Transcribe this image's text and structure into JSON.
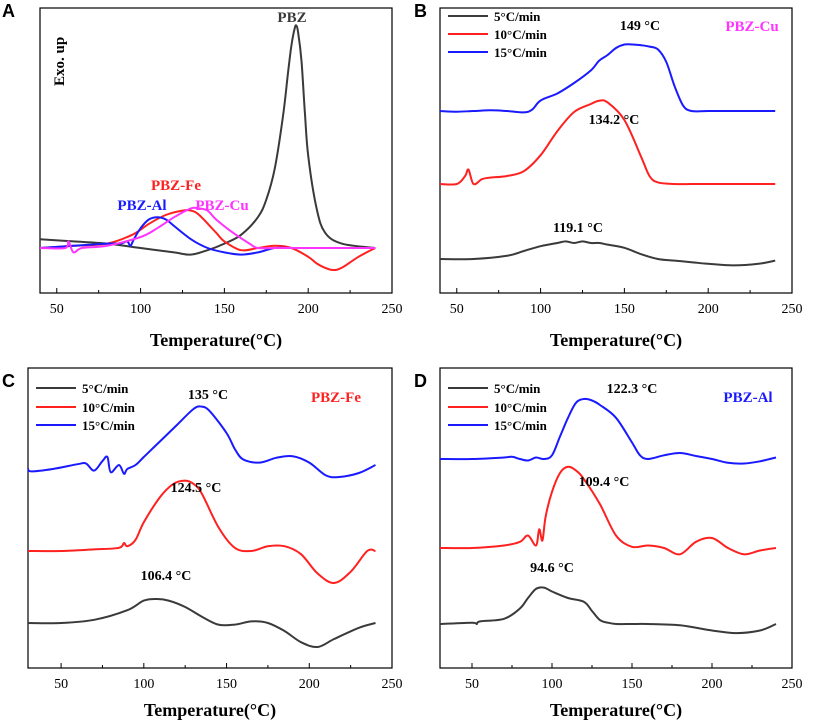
{
  "colors": {
    "black": "#3a3a3a",
    "red": "#ff2020",
    "blue": "#1a1aff",
    "magenta": "#ff33ff"
  },
  "chart_data": [
    {
      "id": "A",
      "type": "line",
      "panel_letter": "A",
      "xlabel": "Temperature(°C)",
      "ylabel": "Exo. up",
      "xlim": [
        40,
        250
      ],
      "xticks": [
        50,
        100,
        150,
        200,
        250
      ],
      "series": [
        {
          "name": "PBZ",
          "color": "#3a3a3a",
          "x": [
            40,
            60,
            80,
            100,
            120,
            130,
            140,
            150,
            160,
            170,
            175,
            180,
            185,
            188,
            190,
            192,
            193,
            194,
            196,
            198,
            200,
            205,
            210,
            220,
            240
          ],
          "y": [
            0.04,
            0.03,
            0.02,
            0.0,
            -0.02,
            -0.03,
            -0.01,
            0.02,
            0.06,
            0.14,
            0.22,
            0.36,
            0.6,
            0.8,
            0.92,
            1.0,
            1.01,
            0.98,
            0.85,
            0.62,
            0.42,
            0.18,
            0.07,
            0.02,
            0.0
          ]
        },
        {
          "name": "PBZ-Fe",
          "color": "#ff2020",
          "x": [
            40,
            60,
            80,
            95,
            105,
            115,
            125,
            130,
            135,
            145,
            150,
            160,
            170,
            180,
            190,
            200,
            205,
            210,
            215,
            220,
            230,
            240
          ],
          "y": [
            0.0,
            0.01,
            0.02,
            0.06,
            0.11,
            0.15,
            0.17,
            0.17,
            0.15,
            0.07,
            0.03,
            -0.01,
            0.0,
            0.01,
            0.0,
            -0.04,
            -0.07,
            -0.09,
            -0.1,
            -0.09,
            -0.04,
            0.0
          ]
        },
        {
          "name": "PBZ-Al",
          "color": "#1a1aff",
          "x": [
            40,
            60,
            80,
            88,
            92,
            94,
            96,
            100,
            105,
            110,
            115,
            120,
            130,
            140,
            150,
            160,
            170,
            180,
            190,
            200,
            220,
            240
          ],
          "y": [
            0.0,
            0.01,
            0.02,
            0.02,
            0.03,
            0.01,
            0.04,
            0.09,
            0.13,
            0.14,
            0.13,
            0.1,
            0.04,
            0.0,
            -0.02,
            -0.03,
            -0.02,
            0.0,
            0.0,
            0.0,
            0.0,
            0.0
          ]
        },
        {
          "name": "PBZ-Cu",
          "color": "#ff33ff",
          "x": [
            40,
            55,
            57,
            60,
            65,
            80,
            100,
            110,
            120,
            130,
            135,
            140,
            145,
            155,
            165,
            170,
            180,
            190,
            200,
            220,
            240
          ],
          "y": [
            0.0,
            0.0,
            0.03,
            -0.02,
            0.0,
            0.01,
            0.05,
            0.09,
            0.14,
            0.18,
            0.18,
            0.17,
            0.13,
            0.07,
            0.02,
            0.0,
            0.0,
            0.0,
            0.0,
            0.0,
            0.0
          ]
        }
      ],
      "annotations": [
        {
          "text": "PBZ",
          "color": "#3a3a3a"
        },
        {
          "text": "PBZ-Fe",
          "color": "#ff2020"
        },
        {
          "text": "PBZ-Al",
          "color": "#1a1aff"
        },
        {
          "text": "PBZ-Cu",
          "color": "#ff33ff"
        }
      ]
    },
    {
      "id": "B",
      "type": "line",
      "panel_letter": "B",
      "xlabel": "Temperature(°C)",
      "xlim": [
        40,
        250
      ],
      "xticks": [
        50,
        100,
        150,
        200,
        250
      ],
      "legend": [
        "5°C/min",
        "10°C/min",
        "15°C/min"
      ],
      "sample_label": "PBZ-Cu",
      "sample_color": "#ff33ff",
      "series": [
        {
          "name": "5°C/min",
          "color": "#3a3a3a",
          "x": [
            40,
            60,
            80,
            90,
            100,
            110,
            115,
            120,
            125,
            130,
            135,
            140,
            150,
            160,
            170,
            180,
            190,
            200,
            215,
            230,
            240
          ],
          "y": [
            0.0,
            0.0,
            0.02,
            0.05,
            0.08,
            0.1,
            0.11,
            0.1,
            0.11,
            0.1,
            0.1,
            0.09,
            0.07,
            0.03,
            0.0,
            -0.01,
            -0.02,
            -0.03,
            -0.04,
            -0.03,
            -0.01
          ]
        },
        {
          "name": "10°C/min",
          "color": "#ff2020",
          "x": [
            40,
            50,
            55,
            57,
            60,
            65,
            70,
            80,
            90,
            100,
            110,
            120,
            130,
            135,
            140,
            150,
            160,
            165,
            170,
            180,
            190,
            200,
            220,
            240
          ],
          "y": [
            0.0,
            0.0,
            0.05,
            0.09,
            0.0,
            0.03,
            0.04,
            0.05,
            0.08,
            0.18,
            0.33,
            0.45,
            0.5,
            0.52,
            0.51,
            0.4,
            0.17,
            0.05,
            0.01,
            0.0,
            0.0,
            0.0,
            0.0,
            0.0
          ]
        },
        {
          "name": "15°C/min",
          "color": "#1a1aff",
          "x": [
            40,
            50,
            60,
            70,
            80,
            90,
            95,
            100,
            110,
            120,
            130,
            135,
            140,
            145,
            150,
            155,
            160,
            165,
            170,
            175,
            180,
            185,
            190,
            200,
            220,
            240
          ],
          "y": [
            0.0,
            -0.01,
            0.0,
            0.01,
            0.0,
            -0.02,
            0.02,
            0.15,
            0.25,
            0.4,
            0.58,
            0.72,
            0.8,
            0.9,
            0.95,
            0.95,
            0.94,
            0.92,
            0.88,
            0.7,
            0.35,
            0.08,
            0.0,
            0.0,
            0.0,
            0.0
          ]
        }
      ],
      "annotations": [
        {
          "text": "149 °C",
          "series": 2
        },
        {
          "text": "134.2 °C",
          "series": 1
        },
        {
          "text": "119.1 °C",
          "series": 0
        }
      ]
    },
    {
      "id": "C",
      "type": "line",
      "panel_letter": "C",
      "xlabel": "Temperature(°C)",
      "xlim": [
        30,
        250
      ],
      "xticks": [
        50,
        100,
        150,
        200,
        250
      ],
      "legend": [
        "5°C/min",
        "10°C/min",
        "15°C/min"
      ],
      "sample_label": "PBZ-Fe",
      "sample_color": "#ff2020",
      "series": [
        {
          "name": "5°C/min",
          "color": "#3a3a3a",
          "x": [
            30,
            50,
            70,
            90,
            100,
            108,
            115,
            125,
            135,
            145,
            155,
            165,
            175,
            185,
            195,
            205,
            215,
            230,
            240
          ],
          "y": [
            0.0,
            0.0,
            0.02,
            0.08,
            0.14,
            0.15,
            0.14,
            0.1,
            0.04,
            -0.01,
            -0.01,
            0.01,
            0.0,
            -0.05,
            -0.12,
            -0.15,
            -0.1,
            -0.03,
            0.0
          ]
        },
        {
          "name": "10°C/min",
          "color": "#ff2020",
          "x": [
            30,
            50,
            70,
            85,
            88,
            90,
            95,
            100,
            110,
            118,
            125,
            130,
            135,
            145,
            155,
            165,
            175,
            185,
            195,
            205,
            215,
            225,
            235,
            240
          ],
          "y": [
            0.0,
            0.0,
            0.01,
            0.02,
            0.05,
            0.03,
            0.07,
            0.18,
            0.34,
            0.42,
            0.44,
            0.42,
            0.36,
            0.15,
            0.02,
            0.0,
            0.03,
            0.03,
            -0.02,
            -0.14,
            -0.2,
            -0.13,
            0.0,
            0.0
          ]
        },
        {
          "name": "15°C/min",
          "color": "#1a1aff",
          "x": [
            30,
            32,
            45,
            60,
            65,
            70,
            75,
            78,
            80,
            85,
            88,
            90,
            95,
            100,
            110,
            120,
            130,
            135,
            140,
            150,
            155,
            160,
            170,
            180,
            190,
            200,
            210,
            218,
            230,
            240
          ],
          "y": [
            0.0,
            -0.03,
            0.0,
            0.06,
            0.07,
            -0.02,
            0.1,
            0.15,
            -0.04,
            0.05,
            -0.06,
            0.0,
            0.05,
            0.15,
            0.35,
            0.55,
            0.75,
            0.78,
            0.72,
            0.45,
            0.25,
            0.12,
            0.08,
            0.14,
            0.16,
            0.08,
            -0.08,
            -0.1,
            -0.05,
            0.05
          ]
        }
      ],
      "annotations": [
        {
          "text": "135 °C",
          "series": 2
        },
        {
          "text": "124.5 °C",
          "series": 1
        },
        {
          "text": "106.4 °C",
          "series": 0
        }
      ]
    },
    {
      "id": "D",
      "type": "line",
      "panel_letter": "D",
      "xlabel": "Temperature(°C)",
      "xlim": [
        30,
        250
      ],
      "xticks": [
        50,
        100,
        150,
        200,
        250
      ],
      "legend": [
        "5°C/min",
        "10°C/min",
        "15°C/min"
      ],
      "sample_label": "PBZ-Al",
      "sample_color": "#1a1aff",
      "series": [
        {
          "name": "5°C/min",
          "color": "#3a3a3a",
          "x": [
            30,
            50,
            53,
            55,
            70,
            80,
            85,
            90,
            95,
            100,
            110,
            120,
            125,
            130,
            135,
            140,
            150,
            160,
            180,
            200,
            215,
            230,
            240
          ],
          "y": [
            0.0,
            0.01,
            0.0,
            0.02,
            0.04,
            0.12,
            0.2,
            0.27,
            0.28,
            0.25,
            0.2,
            0.17,
            0.1,
            0.03,
            0.01,
            0.0,
            0.0,
            0.0,
            -0.01,
            -0.05,
            -0.07,
            -0.05,
            0.0
          ]
        },
        {
          "name": "10°C/min",
          "color": "#ff2020",
          "x": [
            30,
            50,
            70,
            80,
            85,
            90,
            92,
            94,
            96,
            100,
            105,
            110,
            115,
            120,
            130,
            140,
            150,
            160,
            170,
            180,
            190,
            200,
            210,
            220,
            230,
            240
          ],
          "y": [
            0.0,
            0.0,
            0.02,
            0.05,
            0.1,
            0.02,
            0.15,
            0.06,
            0.25,
            0.45,
            0.6,
            0.65,
            0.62,
            0.55,
            0.35,
            0.1,
            0.01,
            0.02,
            0.0,
            -0.05,
            0.05,
            0.08,
            0.0,
            -0.05,
            -0.02,
            0.0
          ]
        },
        {
          "name": "15°C/min",
          "color": "#1a1aff",
          "x": [
            30,
            50,
            70,
            75,
            80,
            85,
            90,
            95,
            100,
            105,
            110,
            115,
            120,
            125,
            130,
            140,
            150,
            155,
            160,
            170,
            180,
            190,
            200,
            210,
            220,
            230,
            240
          ],
          "y": [
            0.0,
            0.0,
            0.02,
            0.03,
            0.0,
            -0.02,
            0.02,
            0.0,
            0.05,
            0.3,
            0.55,
            0.75,
            0.8,
            0.78,
            0.72,
            0.55,
            0.22,
            0.05,
            0.0,
            0.05,
            0.08,
            0.04,
            0.0,
            -0.05,
            -0.06,
            -0.03,
            0.02
          ]
        }
      ],
      "annotations": [
        {
          "text": "122.3 °C",
          "series": 2
        },
        {
          "text": "109.4 °C",
          "series": 1
        },
        {
          "text": "94.6 °C",
          "series": 0
        }
      ]
    }
  ]
}
